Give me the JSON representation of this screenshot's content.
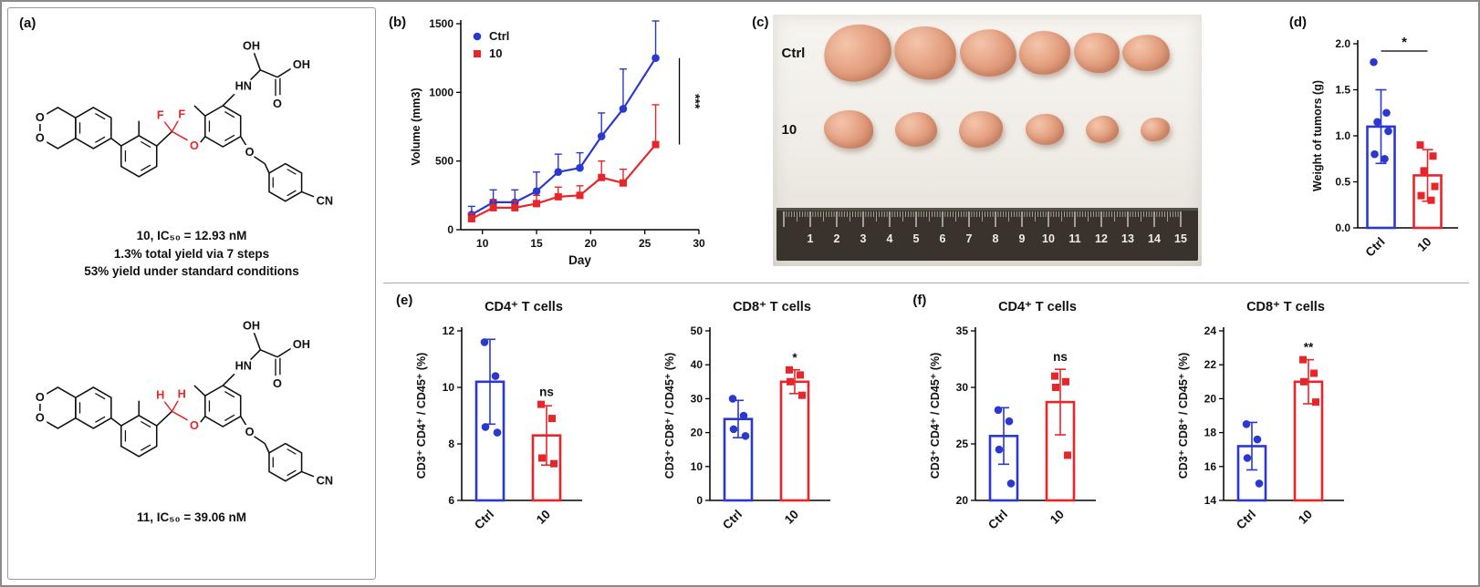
{
  "accent_colors": {
    "ctrl_blue": "#2b38cf",
    "treat_red": "#e8262a"
  },
  "panels": {
    "a": {
      "label": "(a)",
      "atom_labels": {
        "O": "O",
        "OH": "OH",
        "HN": "HN",
        "CN": "CN",
        "F": "F",
        "H": "H"
      },
      "compound10": {
        "highlight_atom": "F",
        "title": "10, IC₅₀ = 12.93 nM",
        "yield_line1": "1.3% total yield via 7 steps",
        "yield_line2": "53% yield under standard conditions"
      },
      "compound11": {
        "highlight_atom": "H",
        "title": "11, IC₅₀ = 39.06 nM"
      }
    },
    "b": {
      "label": "(b)"
    },
    "c": {
      "label": "(c)",
      "rows": [
        {
          "label": "Ctrl",
          "tumor_count": 6
        },
        {
          "label": "10",
          "tumor_count": 6
        }
      ],
      "ruler_numbers": [
        1,
        2,
        3,
        4,
        5,
        6,
        7,
        8,
        9,
        10,
        11,
        12,
        13,
        14,
        15
      ]
    },
    "d": {
      "label": "(d)"
    },
    "e": {
      "label": "(e)"
    },
    "f": {
      "label": "(f)"
    }
  },
  "chart_data": [
    {
      "id": "b-volume",
      "type": "line",
      "panel": "(b)",
      "xlabel": "Day",
      "ylabel": "Volume (mm3)",
      "xlim": [
        8,
        30
      ],
      "xticks": [
        10,
        15,
        20,
        25,
        30
      ],
      "ylim": [
        0,
        1500
      ],
      "yticks": [
        0,
        500,
        1000,
        1500
      ],
      "ytick_labels": [
        "0",
        "500",
        "1000",
        "1500"
      ],
      "x": [
        9,
        11,
        13,
        15,
        17,
        19,
        21,
        23,
        26
      ],
      "series": [
        {
          "name": "Ctrl",
          "color": "#2b38cf",
          "marker": "circle",
          "values": [
            110,
            200,
            200,
            280,
            420,
            450,
            680,
            880,
            1250
          ],
          "errors": [
            60,
            90,
            90,
            140,
            130,
            110,
            170,
            290,
            270
          ]
        },
        {
          "name": "10",
          "color": "#e8262a",
          "marker": "square",
          "values": [
            80,
            160,
            160,
            190,
            240,
            250,
            380,
            340,
            620
          ],
          "errors": [
            40,
            60,
            50,
            60,
            70,
            70,
            120,
            100,
            290
          ]
        }
      ],
      "significance": "***",
      "legend_position": "top-left",
      "grid": false
    },
    {
      "id": "d-weight",
      "type": "bar",
      "panel": "(d)",
      "title": "",
      "ylabel": "Weight of tumors (g)",
      "categories": [
        "Ctrl",
        "10"
      ],
      "colors": [
        "#2b38cf",
        "#e8262a"
      ],
      "markers": [
        "circle",
        "square"
      ],
      "values": [
        1.1,
        0.57
      ],
      "errors": [
        0.4,
        0.28
      ],
      "points": [
        [
          1.8,
          1.25,
          1.15,
          1.05,
          0.8,
          0.75
        ],
        [
          0.9,
          0.78,
          0.62,
          0.45,
          0.35,
          0.3
        ]
      ],
      "ylim": [
        0,
        2
      ],
      "yticks": [
        0,
        0.5,
        1,
        1.5,
        2
      ],
      "ytick_labels": [
        "0.0",
        "0.5",
        "1.0",
        "1.5",
        "2.0"
      ],
      "significance": "*",
      "significance_style": "bracket"
    },
    {
      "id": "e-cd4",
      "type": "bar",
      "panel": "(e)",
      "title": "CD4⁺ T cells",
      "ylabel": "CD3⁺ CD4⁺ / CD45⁺ (%)",
      "categories": [
        "Ctrl",
        "10"
      ],
      "colors": [
        "#2b38cf",
        "#e8262a"
      ],
      "markers": [
        "circle",
        "square"
      ],
      "values": [
        10.2,
        8.3
      ],
      "errors": [
        1.5,
        1.05
      ],
      "points": [
        [
          11.6,
          10.4,
          8.6,
          8.4
        ],
        [
          9.4,
          8.9,
          7.5,
          7.3
        ]
      ],
      "ylim": [
        6,
        12
      ],
      "yticks": [
        6,
        8,
        10,
        12
      ],
      "ytick_labels": [
        "6",
        "8",
        "10",
        "12"
      ],
      "significance": "ns",
      "significance_style": "above-second"
    },
    {
      "id": "e-cd8",
      "type": "bar",
      "panel": "(e)",
      "title": "CD8⁺ T cells",
      "ylabel": "CD3⁺ CD8⁺ / CD45⁺ (%)",
      "categories": [
        "Ctrl",
        "10"
      ],
      "colors": [
        "#2b38cf",
        "#e8262a"
      ],
      "markers": [
        "circle",
        "square"
      ],
      "values": [
        24,
        35
      ],
      "errors": [
        5.5,
        3.5
      ],
      "points": [
        [
          30,
          25,
          21,
          19
        ],
        [
          38.5,
          37,
          35,
          31
        ]
      ],
      "ylim": [
        0,
        50
      ],
      "yticks": [
        0,
        10,
        20,
        30,
        40,
        50
      ],
      "ytick_labels": [
        "0",
        "10",
        "20",
        "30",
        "40",
        "50"
      ],
      "significance": "*",
      "significance_style": "above-second"
    },
    {
      "id": "f-cd4",
      "type": "bar",
      "panel": "(f)",
      "title": "CD4⁺ T cells",
      "ylabel": "CD3⁺ CD4⁺ / CD45⁺ (%)",
      "categories": [
        "Ctrl",
        "10"
      ],
      "colors": [
        "#2b38cf",
        "#e8262a"
      ],
      "markers": [
        "circle",
        "square"
      ],
      "values": [
        25.7,
        28.7
      ],
      "errors": [
        2.5,
        2.9
      ],
      "points": [
        [
          28,
          27,
          24.5,
          21.5
        ],
        [
          31,
          30.5,
          30,
          24
        ]
      ],
      "ylim": [
        20,
        35
      ],
      "yticks": [
        20,
        25,
        30,
        35
      ],
      "ytick_labels": [
        "20",
        "25",
        "30",
        "35"
      ],
      "significance": "ns",
      "significance_style": "above-second"
    },
    {
      "id": "f-cd8",
      "type": "bar",
      "panel": "(f)",
      "title": "CD8⁺ T cells",
      "ylabel": "CD3⁺ CD8⁺ / CD45⁺ (%)",
      "categories": [
        "Ctrl",
        "10"
      ],
      "colors": [
        "#2b38cf",
        "#e8262a"
      ],
      "markers": [
        "circle",
        "square"
      ],
      "values": [
        17.2,
        21
      ],
      "errors": [
        1.4,
        1.3
      ],
      "points": [
        [
          18.5,
          17.6,
          16.5,
          15
        ],
        [
          22.3,
          21.5,
          21,
          19.8
        ]
      ],
      "ylim": [
        14,
        24
      ],
      "yticks": [
        14,
        16,
        18,
        20,
        22,
        24
      ],
      "ytick_labels": [
        "14",
        "16",
        "18",
        "20",
        "22",
        "24"
      ],
      "significance": "**",
      "significance_style": "above-second"
    }
  ]
}
